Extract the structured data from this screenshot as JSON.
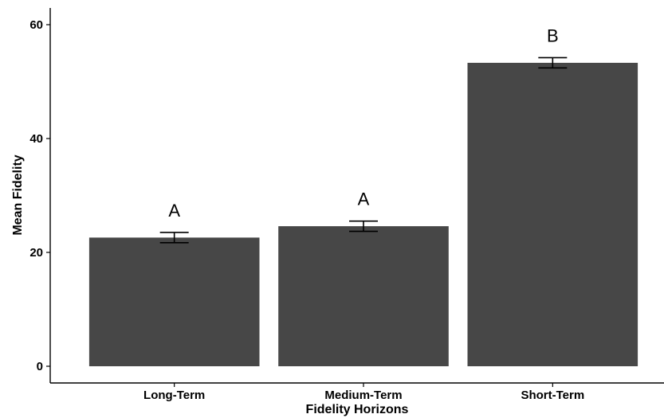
{
  "chart_data": {
    "type": "bar",
    "xlabel": "Fidelity Horizons",
    "ylabel": "Mean Fidelity",
    "categories": [
      "Long-Term",
      "Medium-Term",
      "Short-Term"
    ],
    "values": [
      22.6,
      24.6,
      53.3
    ],
    "error_low": [
      21.7,
      23.7,
      52.4
    ],
    "error_high": [
      23.5,
      25.5,
      54.2
    ],
    "significance_labels": [
      "A",
      "A",
      "B"
    ],
    "ylim": [
      -2.5,
      63
    ],
    "yticks": [
      0,
      20,
      40,
      60
    ],
    "grid": false,
    "legend": "none",
    "bar_color": "#474747"
  }
}
